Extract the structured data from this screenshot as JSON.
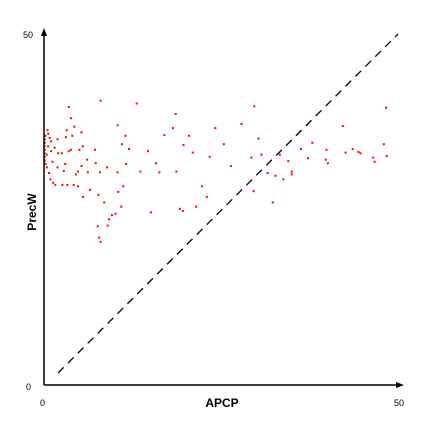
{
  "chart_data": {
    "type": "scatter",
    "title": "",
    "xlabel": "APCP",
    "ylabel": "PrecW",
    "xlim": [
      0,
      50
    ],
    "ylim": [
      0,
      50
    ],
    "x_ticks": [
      "0",
      "50"
    ],
    "y_ticks": [
      "0",
      "50"
    ],
    "grid": false,
    "reference_line": {
      "style": "dashed",
      "color": "#000000",
      "from": [
        0,
        0
      ],
      "to": [
        50,
        50
      ]
    },
    "point_color": "#ff0000",
    "axis_color": "#000000",
    "series": [
      {
        "points": [
          [
            0.1,
            35.0
          ],
          [
            0.1,
            34.5
          ],
          [
            0.1,
            34.0
          ],
          [
            0.1,
            33.5
          ],
          [
            0.1,
            33.0
          ],
          [
            0.1,
            32.5
          ],
          [
            0.1,
            32.0
          ],
          [
            0.2,
            35.5
          ],
          [
            0.2,
            31.5
          ],
          [
            0.4,
            32.8
          ],
          [
            0.4,
            31.0
          ],
          [
            0.5,
            36.3
          ],
          [
            0.6,
            35.8
          ],
          [
            0.6,
            34.0
          ],
          [
            0.7,
            30.2
          ],
          [
            0.8,
            35.2
          ],
          [
            0.9,
            29.3
          ],
          [
            1.0,
            34.7
          ],
          [
            1.0,
            33.3
          ],
          [
            1.2,
            31.8
          ],
          [
            1.3,
            28.8
          ],
          [
            1.5,
            33.8
          ],
          [
            1.6,
            28.5
          ],
          [
            1.9,
            35.0
          ],
          [
            1.9,
            31.0
          ],
          [
            2.0,
            33.0
          ],
          [
            2.5,
            33.0
          ],
          [
            2.6,
            28.5
          ],
          [
            2.8,
            30.5
          ],
          [
            3.0,
            31.5
          ],
          [
            3.1,
            35.3
          ],
          [
            3.2,
            36.3
          ],
          [
            3.3,
            28.5
          ],
          [
            3.5,
            39.6
          ],
          [
            3.5,
            33.3
          ],
          [
            3.8,
            38.0
          ],
          [
            3.8,
            33.5
          ],
          [
            4.0,
            35.5
          ],
          [
            4.2,
            28.5
          ],
          [
            4.3,
            36.8
          ],
          [
            4.5,
            30.0
          ],
          [
            4.8,
            28.3
          ],
          [
            4.8,
            30.4
          ],
          [
            5.0,
            33.5
          ],
          [
            5.3,
            36.0
          ],
          [
            5.3,
            31.2
          ],
          [
            5.5,
            34.0
          ],
          [
            5.5,
            26.8
          ],
          [
            6.1,
            32.1
          ],
          [
            6.2,
            30.3
          ],
          [
            6.5,
            27.8
          ],
          [
            7.2,
            33.5
          ],
          [
            7.3,
            31.6
          ],
          [
            7.6,
            22.6
          ],
          [
            7.7,
            27.1
          ],
          [
            7.8,
            21.0
          ],
          [
            8.0,
            20.4
          ],
          [
            8.5,
            26.0
          ],
          [
            8.9,
            31.0
          ],
          [
            9.0,
            22.7
          ],
          [
            9.2,
            23.6
          ],
          [
            9.6,
            24.2
          ],
          [
            7.9,
            30.3
          ],
          [
            8.0,
            40.5
          ],
          [
            10.1,
            24.4
          ],
          [
            10.5,
            27.5
          ],
          [
            10.9,
            25.4
          ],
          [
            10.4,
            37.0
          ],
          [
            10.4,
            30.3
          ],
          [
            11.0,
            34.3
          ],
          [
            11.2,
            28.3
          ],
          [
            11.5,
            35.5
          ],
          [
            11.6,
            31.5
          ],
          [
            12.0,
            33.6
          ],
          [
            13.1,
            40.1
          ],
          [
            13.6,
            30.4
          ],
          [
            14.7,
            33.3
          ],
          [
            15.1,
            24.6
          ],
          [
            15.8,
            31.6
          ],
          [
            16.3,
            30.3
          ],
          [
            17.0,
            35.6
          ],
          [
            18.2,
            36.6
          ],
          [
            18.6,
            38.6
          ],
          [
            18.7,
            30.4
          ],
          [
            19.2,
            25.1
          ],
          [
            19.6,
            24.8
          ],
          [
            19.7,
            34.2
          ],
          [
            20.5,
            35.5
          ],
          [
            21.0,
            33.1
          ],
          [
            21.5,
            25.4
          ],
          [
            22.3,
            28.3
          ],
          [
            23.0,
            26.8
          ],
          [
            23.4,
            32.5
          ],
          [
            24.2,
            36.6
          ],
          [
            25.4,
            34.3
          ],
          [
            26.4,
            31.2
          ],
          [
            27.9,
            37.2
          ],
          [
            29.3,
            32.4
          ],
          [
            29.6,
            27.6
          ],
          [
            29.7,
            39.7
          ],
          [
            30.3,
            35.1
          ],
          [
            30.7,
            32.8
          ],
          [
            31.6,
            30.2
          ],
          [
            32.3,
            26.0
          ],
          [
            32.7,
            29.8
          ],
          [
            33.3,
            32.8
          ],
          [
            33.8,
            29.3
          ],
          [
            34.5,
            31.9
          ],
          [
            35.0,
            30.4
          ],
          [
            35.0,
            30.0
          ],
          [
            36.3,
            33.6
          ],
          [
            37.3,
            32.3
          ],
          [
            37.9,
            34.5
          ],
          [
            39.8,
            32.1
          ],
          [
            39.9,
            33.5
          ],
          [
            40.1,
            31.6
          ],
          [
            42.2,
            36.9
          ],
          [
            42.6,
            33.1
          ],
          [
            43.6,
            33.6
          ],
          [
            44.4,
            33.2
          ],
          [
            44.7,
            33.0
          ],
          [
            46.5,
            32.4
          ],
          [
            46.7,
            31.8
          ],
          [
            48.0,
            34.3
          ],
          [
            48.3,
            39.5
          ],
          [
            48.4,
            32.6
          ]
        ]
      }
    ]
  }
}
